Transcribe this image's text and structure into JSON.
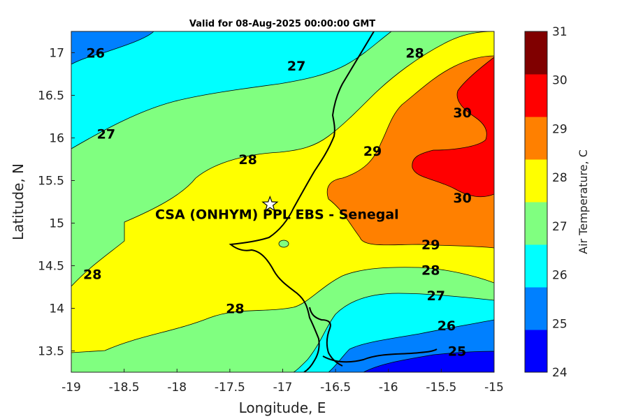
{
  "chart_data": {
    "type": "filled-contour-map",
    "title": "Valid for 08-Aug-2025 00:00:00 GMT",
    "xlabel": "Longitude, E",
    "ylabel": "Latitude, N",
    "xlim": [
      -19,
      -15
    ],
    "ylim": [
      13.25,
      17.25
    ],
    "x_ticks": [
      "-19",
      "-18.5",
      "-18",
      "-17.5",
      "-17",
      "-16.5",
      "-16",
      "-15.5",
      "-15"
    ],
    "y_ticks": [
      "13.5",
      "14",
      "14.5",
      "15",
      "15.5",
      "16",
      "16.5",
      "17"
    ],
    "colorbar": {
      "label": "Air Temperature, C",
      "range": [
        24,
        31
      ],
      "ticks": [
        "24",
        "25",
        "26",
        "27",
        "28",
        "29",
        "30",
        "31"
      ],
      "colors": [
        "#0000ff",
        "#0080ff",
        "#00ffff",
        "#80ff80",
        "#ffff00",
        "#ff8000",
        "#ff0000",
        "#800000"
      ]
    },
    "contour_labels": [
      {
        "text": "26",
        "lon": -18.77,
        "lat": 17.0
      },
      {
        "text": "27",
        "lon": -16.87,
        "lat": 16.85
      },
      {
        "text": "28",
        "lon": -15.75,
        "lat": 17.0
      },
      {
        "text": "27",
        "lon": -18.67,
        "lat": 16.05
      },
      {
        "text": "28",
        "lon": -17.33,
        "lat": 15.75
      },
      {
        "text": "29",
        "lon": -16.15,
        "lat": 15.85
      },
      {
        "text": "30",
        "lon": -15.3,
        "lat": 16.3
      },
      {
        "text": "30",
        "lon": -15.3,
        "lat": 15.3
      },
      {
        "text": "29",
        "lon": -15.6,
        "lat": 14.75
      },
      {
        "text": "28",
        "lon": -15.6,
        "lat": 14.45
      },
      {
        "text": "28",
        "lon": -18.8,
        "lat": 14.4
      },
      {
        "text": "27",
        "lon": -15.55,
        "lat": 14.15
      },
      {
        "text": "28",
        "lon": -17.45,
        "lat": 14.0
      },
      {
        "text": "26",
        "lon": -15.45,
        "lat": 13.8
      },
      {
        "text": "25",
        "lon": -15.35,
        "lat": 13.5
      }
    ],
    "site": {
      "name": "CSA (ONHYM) PPL EBS  - Senegal",
      "lon": -17.12,
      "lat": 15.22
    }
  }
}
